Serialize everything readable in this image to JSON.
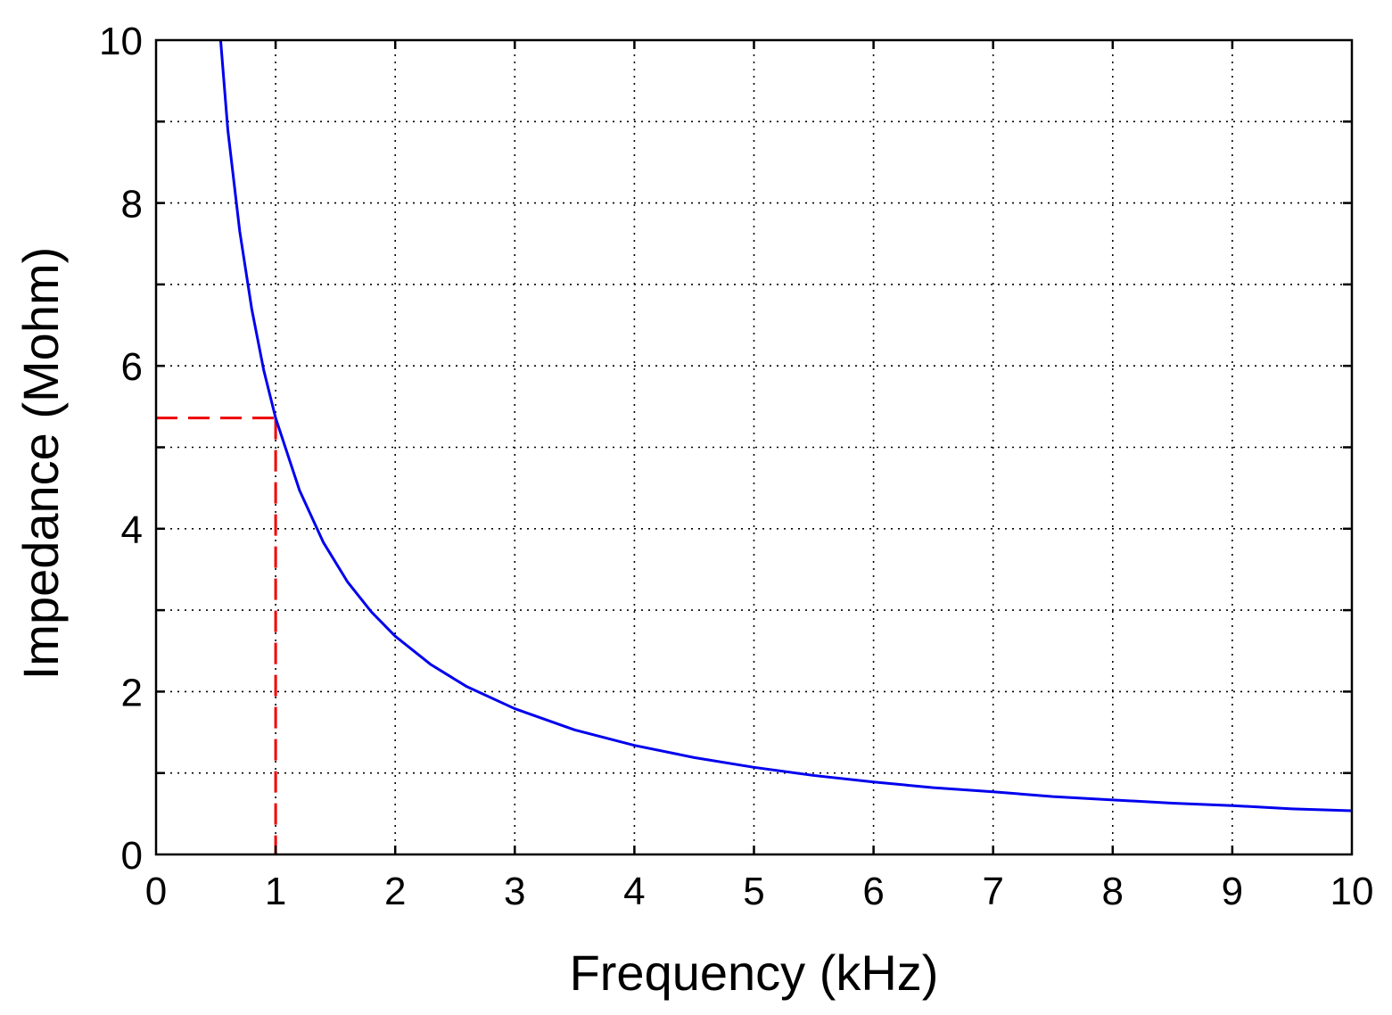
{
  "chart_data": {
    "type": "line",
    "title": "",
    "xlabel": "Frequency (kHz)",
    "ylabel": "Impedance (Mohm)",
    "xlim": [
      0,
      10
    ],
    "ylim": [
      0,
      10
    ],
    "x_ticks": [
      0,
      1,
      2,
      3,
      4,
      5,
      6,
      7,
      8,
      9,
      10
    ],
    "y_ticks": [
      0,
      2,
      4,
      6,
      8,
      10
    ],
    "y_minor_grid": [
      1,
      3,
      5,
      7,
      9
    ],
    "x_tick_labels": [
      "0",
      "1",
      "2",
      "3",
      "4",
      "5",
      "6",
      "7",
      "8",
      "9",
      "10"
    ],
    "y_tick_labels": [
      "0",
      "2",
      "4",
      "6",
      "8",
      "10"
    ],
    "grid": true,
    "legend": "none",
    "series": [
      {
        "color": "#0000ee",
        "style": "solid",
        "x": [
          0.54,
          0.6,
          0.7,
          0.8,
          0.9,
          1.0,
          1.2,
          1.4,
          1.6,
          1.8,
          2.0,
          2.3,
          2.6,
          3.0,
          3.5,
          4.0,
          4.5,
          5.0,
          5.5,
          6.0,
          6.5,
          7.0,
          7.5,
          8.0,
          8.5,
          9.0,
          9.5,
          10.0
        ],
        "y": [
          10.0,
          8.9,
          7.65,
          6.7,
          5.95,
          5.36,
          4.47,
          3.83,
          3.35,
          2.98,
          2.68,
          2.33,
          2.06,
          1.79,
          1.53,
          1.34,
          1.19,
          1.07,
          0.97,
          0.89,
          0.82,
          0.77,
          0.71,
          0.67,
          0.63,
          0.6,
          0.56,
          0.536
        ]
      }
    ],
    "annotations": [
      {
        "kind": "guide-lines",
        "color": "#ee0000",
        "style": "dashed",
        "x": 1,
        "y": 5.36
      }
    ]
  }
}
